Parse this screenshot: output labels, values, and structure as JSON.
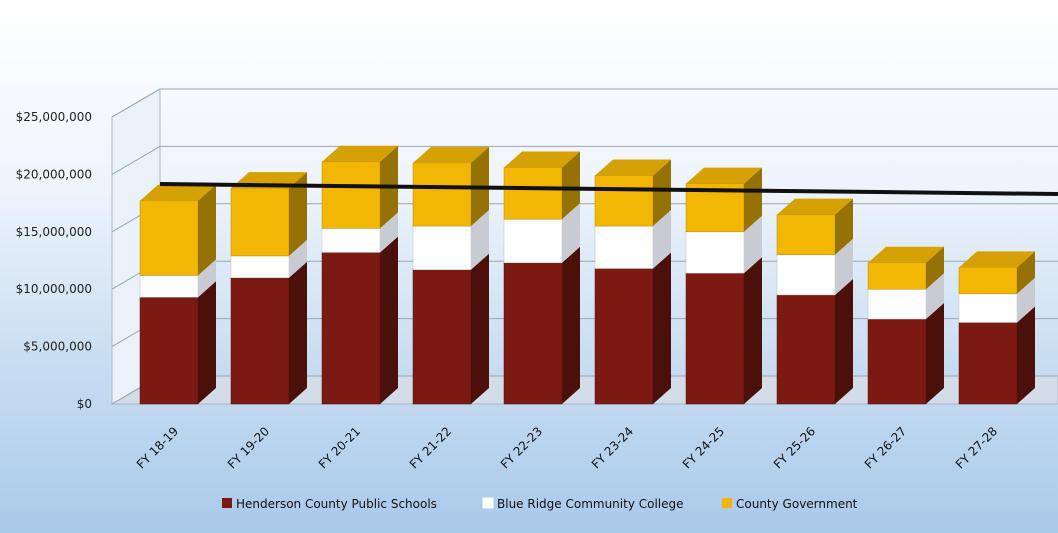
{
  "chart_data": {
    "type": "bar",
    "stacked": true,
    "three_d": true,
    "categories": [
      "FY 18-19",
      "FY 19-20",
      "FY 20-21",
      "FY 21-22",
      "FY 22-23",
      "FY 23-24",
      "FY 24-25",
      "FY 25-26",
      "FY 26-27",
      "FY 27-28"
    ],
    "series": [
      {
        "name": "Henderson County Public Schools",
        "color": "#7a1a12",
        "values": [
          9300000,
          11000000,
          13200000,
          11700000,
          12300000,
          11800000,
          11400000,
          9500000,
          7400000,
          7100000
        ]
      },
      {
        "name": "Blue Ridge Community College",
        "color": "#ffffff",
        "values": [
          1900000,
          1900000,
          2100000,
          3800000,
          3800000,
          3700000,
          3600000,
          3500000,
          2600000,
          2500000
        ]
      },
      {
        "name": "County Government",
        "color": "#f2b705",
        "values": [
          6500000,
          5900000,
          5800000,
          5500000,
          4500000,
          4400000,
          4200000,
          3500000,
          2300000,
          2300000
        ]
      }
    ],
    "ylim": [
      0,
      25000000
    ],
    "ytick_labels": [
      "$0",
      "$5,000,000",
      "$10,000,000",
      "$15,000,000",
      "$20,000,000",
      "$25,000,000"
    ],
    "reference_line": 18900000,
    "grid": true,
    "legend_position": "bottom"
  }
}
